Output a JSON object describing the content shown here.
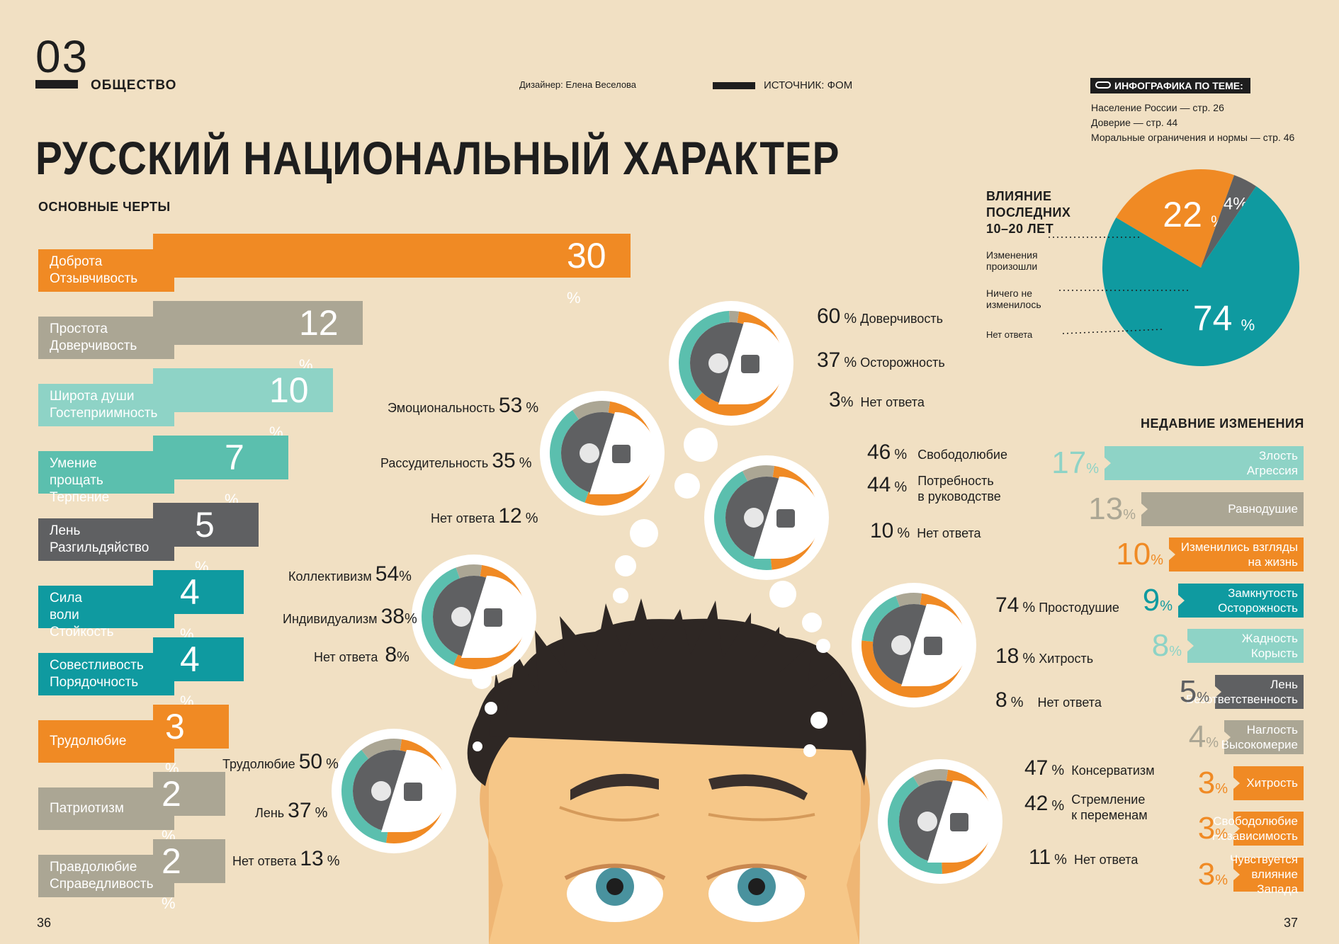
{
  "header": {
    "issue_number": "03",
    "section": "ОБЩЕСТВО",
    "designer": "Дизайнер: Елена Веселова",
    "source": "ИСТОЧНИК: ФОМ",
    "related_title": "ИНФОГРАФИКА ПО ТЕМЕ:",
    "related_items": [
      "Население России — стр. 26",
      "Доверие — стр. 44",
      "Моральные ограничения и нормы — стр. 46"
    ]
  },
  "title": "РУССКИЙ НАЦИОНАЛЬНЫЙ ХАРАКТЕР",
  "pages": {
    "left": "36",
    "right": "37"
  },
  "colors": {
    "orange": "#f08a24",
    "teal": "#0f9aa0",
    "light_teal": "#8ed3c6",
    "mint": "#5bbfae",
    "gray": "#aba694",
    "dark_gray": "#5f6062",
    "background": "#f1e0c3",
    "ink": "#1e1e1e"
  },
  "chart_data": [
    {
      "type": "bar",
      "title": "ОСНОВНЫЕ ЧЕРТЫ",
      "unit": "%",
      "categories": [
        "Доброта\nОтзывчивость",
        "Простота\nДоверчивость",
        "Широта души\nГостеприимность",
        "Умение прощать\nТерпение",
        "Лень\nРазгильдяйство",
        "Сила воли\nСтойкость",
        "Совестливость\nПорядочность",
        "Трудолюбие",
        "Патриотизм",
        "Правдолюбие\nСправедливость"
      ],
      "values": [
        30,
        12,
        10,
        7,
        5,
        4,
        4,
        3,
        2,
        2
      ],
      "colors": [
        "#f08a24",
        "#aba694",
        "#8ed3c6",
        "#5bbfae",
        "#5f6062",
        "#0f9aa0",
        "#0f9aa0",
        "#f08a24",
        "#aba694",
        "#aba694"
      ]
    },
    {
      "type": "pie",
      "title": "ВЛИЯНИЕ ПОСЛЕДНИХ 10–20 ЛЕТ",
      "unit": "%",
      "labels": [
        "Изменения произошли",
        "Ничего не изменилось",
        "Нет ответа"
      ],
      "values": [
        74,
        22,
        4
      ],
      "colors": [
        "#0f9aa0",
        "#f08a24",
        "#5f6062"
      ]
    },
    {
      "type": "bar",
      "title": "НЕДАВНИЕ ИЗМЕНЕНИЯ",
      "unit": "%",
      "categories": [
        "Злость\nАгрессия",
        "Равнодушие",
        "Изменились взгляды\nна жизнь",
        "Замкнутость\nОсторожность",
        "Жадность\nКорысть",
        "Лень\nБезответственность",
        "Наглость\nВысокомерие",
        "Хитрость",
        "Свободолюбие\nНезависимость",
        "Чувствуется\nвлияние Запада"
      ],
      "values": [
        17,
        13,
        10,
        9,
        8,
        5,
        4,
        3,
        3,
        3
      ],
      "colors": [
        "#8ed3c6",
        "#aba694",
        "#f08a24",
        "#0f9aa0",
        "#8ed3c6",
        "#5f6062",
        "#aba694",
        "#f08a24",
        "#f08a24",
        "#f08a24"
      ]
    },
    {
      "type": "pie",
      "title": "",
      "icon": "rake-and-hand-icon",
      "labels": [
        "Доверчивость",
        "Осторожность",
        "Нет ответа"
      ],
      "values": [
        60,
        37,
        3
      ],
      "colors": [
        "#f08a24",
        "#5bbfae",
        "#aba694"
      ]
    },
    {
      "type": "pie",
      "title": "",
      "icon": "lightning-and-brain-icon",
      "labels": [
        "Эмоциональность",
        "Рассудительность",
        "Нет ответа"
      ],
      "values": [
        53,
        35,
        12
      ],
      "colors": [
        "#f08a24",
        "#5bbfae",
        "#aba694"
      ]
    },
    {
      "type": "pie",
      "title": "",
      "icon": "shirt-and-suit-icon",
      "labels": [
        "Свободолюбие",
        "Потребность\nв руководстве",
        "Нет ответа"
      ],
      "values": [
        46,
        44,
        10
      ],
      "colors": [
        "#f08a24",
        "#5bbfae",
        "#aba694"
      ]
    },
    {
      "type": "pie",
      "title": "",
      "icon": "person-and-group-icon",
      "labels": [
        "Коллективизм",
        "Индивидуализм",
        "Нет ответа"
      ],
      "values": [
        54,
        38,
        8
      ],
      "colors": [
        "#f08a24",
        "#5bbfae",
        "#aba694"
      ]
    },
    {
      "type": "pie",
      "title": "",
      "icon": "angel-and-fox-icon",
      "labels": [
        "Простодушие",
        "Хитрость",
        "Нет ответа"
      ],
      "values": [
        74,
        18,
        8
      ],
      "colors": [
        "#f08a24",
        "#5bbfae",
        "#aba694"
      ]
    },
    {
      "type": "pie",
      "title": "",
      "icon": "pillow-and-hammer-icon",
      "labels": [
        "Трудолюбие",
        "Лень",
        "Нет ответа"
      ],
      "values": [
        50,
        37,
        13
      ],
      "colors": [
        "#f08a24",
        "#5bbfae",
        "#aba694"
      ]
    },
    {
      "type": "pie",
      "title": "",
      "icon": "crown-and-sailboat-icon",
      "labels": [
        "Консерватизм",
        "Стремление\nк переменам",
        "Нет ответа"
      ],
      "values": [
        47,
        42,
        11
      ],
      "colors": [
        "#f08a24",
        "#5bbfae",
        "#aba694"
      ]
    }
  ]
}
